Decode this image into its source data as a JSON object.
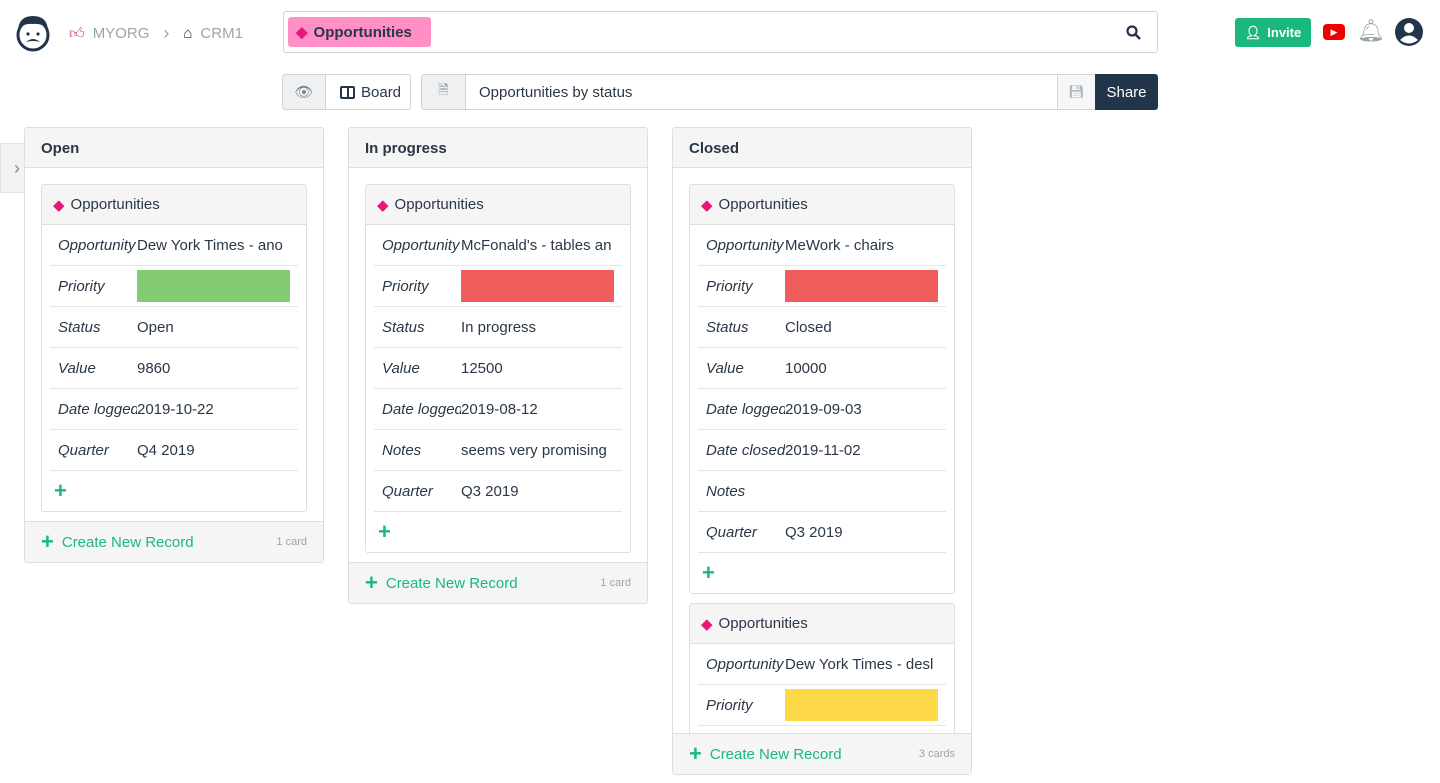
{
  "header": {
    "org": "MYORG",
    "db": "CRM1",
    "table": "Opportunities",
    "invite": "Invite"
  },
  "toolbar": {
    "view": "Board",
    "view_name": "Opportunities by status",
    "share": "Share"
  },
  "colors": {
    "accent": "#1ab87f",
    "dark": "#22354a",
    "green": "#82cb72",
    "red": "#f05c5c",
    "yellow": "#fdd948"
  },
  "columns": [
    {
      "title": "Open",
      "create": "Create New Record",
      "count": "1 card",
      "cards": [
        {
          "title": "Opportunities",
          "fields": [
            {
              "label": "Opportunity",
              "value": "Dew York Times - ano"
            },
            {
              "label": "Priority",
              "color": "#82cb72"
            },
            {
              "label": "Status",
              "value": "Open"
            },
            {
              "label": "Value",
              "value": "9860"
            },
            {
              "label": "Date logged",
              "value": "2019-10-22"
            },
            {
              "label": "Quarter",
              "value": "Q4 2019"
            }
          ]
        }
      ]
    },
    {
      "title": "In progress",
      "create": "Create New Record",
      "count": "1 card",
      "cards": [
        {
          "title": "Opportunities",
          "fields": [
            {
              "label": "Opportunity",
              "value": "McFonald's - tables an"
            },
            {
              "label": "Priority",
              "color": "#f05c5c"
            },
            {
              "label": "Status",
              "value": "In progress"
            },
            {
              "label": "Value",
              "value": "12500"
            },
            {
              "label": "Date logged",
              "value": "2019-08-12"
            },
            {
              "label": "Notes",
              "value": "seems very promising"
            },
            {
              "label": "Quarter",
              "value": "Q3 2019"
            }
          ]
        }
      ]
    },
    {
      "title": "Closed",
      "create": "Create New Record",
      "count": "3 cards",
      "cards": [
        {
          "title": "Opportunities",
          "fields": [
            {
              "label": "Opportunity",
              "value": "MeWork - chairs"
            },
            {
              "label": "Priority",
              "color": "#f05c5c"
            },
            {
              "label": "Status",
              "value": "Closed"
            },
            {
              "label": "Value",
              "value": "10000"
            },
            {
              "label": "Date logged",
              "value": "2019-09-03"
            },
            {
              "label": "Date closed",
              "value": "2019-11-02"
            },
            {
              "label": "Notes",
              "value": ""
            },
            {
              "label": "Quarter",
              "value": "Q3 2019"
            }
          ]
        },
        {
          "title": "Opportunities",
          "fields": [
            {
              "label": "Opportunity",
              "value": "Dew York Times - desl"
            },
            {
              "label": "Priority",
              "color": "#fdd948"
            },
            {
              "label": "Status",
              "value": ""
            }
          ]
        }
      ]
    }
  ]
}
